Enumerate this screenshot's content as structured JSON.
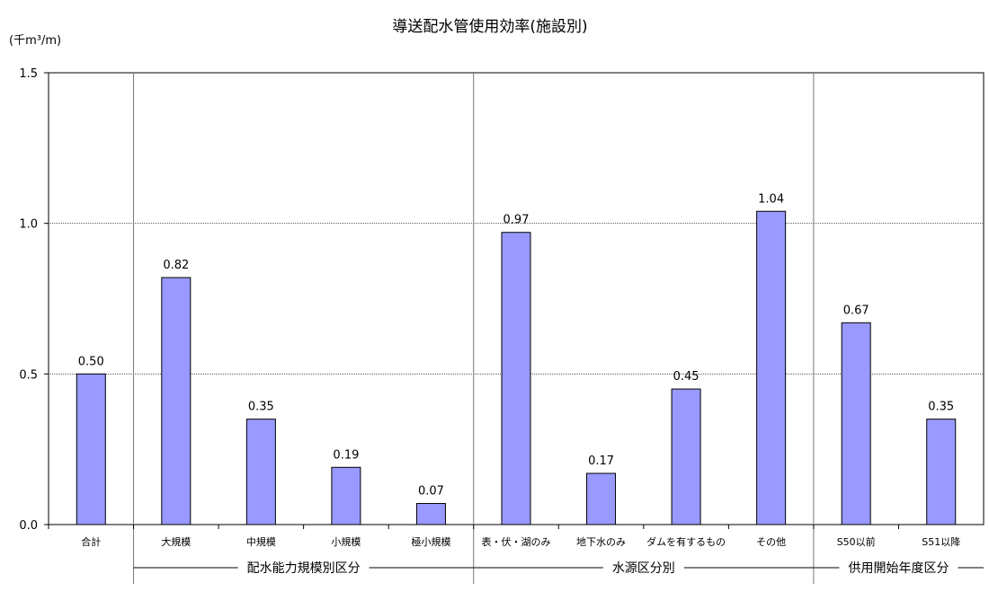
{
  "chart_data": {
    "type": "bar",
    "title": "導送配水管使用効率(施設別)",
    "unit_label": "(千m³/m)",
    "xlabel": "",
    "ylabel": "",
    "ylim": [
      0,
      1.5
    ],
    "yticks": [
      "0.0",
      "0.5",
      "1.0",
      "1.5"
    ],
    "grid": "horizontal dashed",
    "bar_color": "#9999ff",
    "categories": [
      "合計",
      "大規模",
      "中規模",
      "小規模",
      "極小規模",
      "表・伏・湖のみ",
      "地下水のみ",
      "ダムを有するもの",
      "その他",
      "S50以前",
      "S51以降"
    ],
    "values": [
      0.5,
      0.82,
      0.35,
      0.19,
      0.07,
      0.97,
      0.17,
      0.45,
      1.04,
      0.67,
      0.35
    ],
    "value_labels": [
      "0.50",
      "0.82",
      "0.35",
      "0.19",
      "0.07",
      "0.97",
      "0.17",
      "0.45",
      "1.04",
      "0.67",
      "0.35"
    ],
    "groups": [
      {
        "name": "配水能力規模別区分",
        "start": 1,
        "end": 4
      },
      {
        "name": "水源区分別",
        "start": 5,
        "end": 8
      },
      {
        "name": "供用開始年度区分",
        "start": 9,
        "end": 10
      }
    ]
  }
}
